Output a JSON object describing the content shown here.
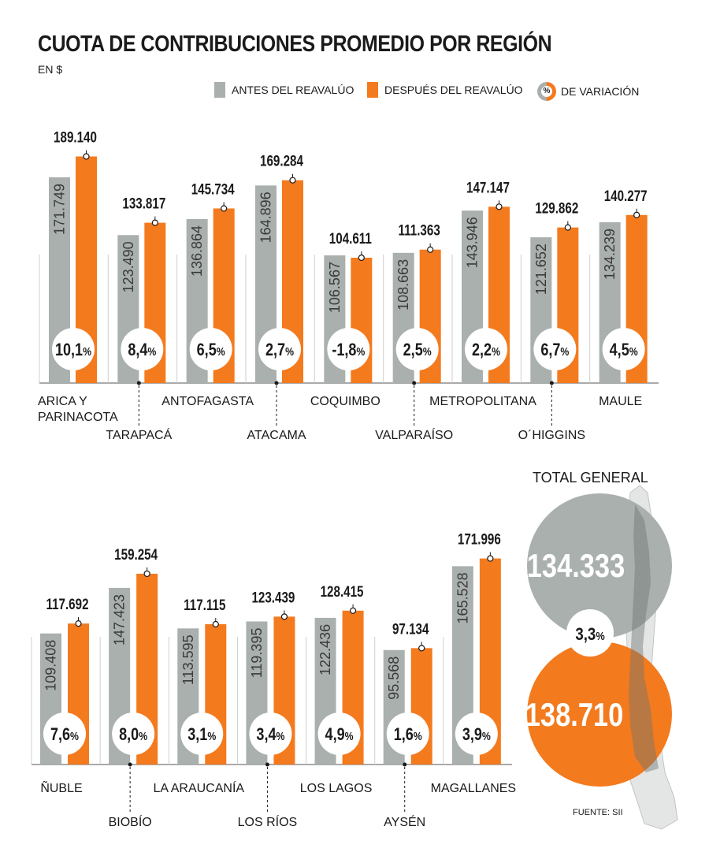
{
  "title": "CUOTA DE CONTRIBUCIONES PROMEDIO POR REGIÓN",
  "unit": "EN $",
  "legend": {
    "before": "ANTES DEL REAVALÚO",
    "after": "DESPUÉS DEL REAVALÚO",
    "pct_symbol": "%",
    "variation": "DE VARIACIÓN"
  },
  "colors": {
    "before": "#a9b0ad",
    "after": "#f47a1e",
    "text": "#1a1a1a"
  },
  "chart_data": [
    {
      "type": "bar",
      "categories": [
        "ARICA Y PARINACOTA",
        "TARAPACÁ",
        "ANTOFAGASTA",
        "ATACAMA",
        "COQUIMBO",
        "VALPARAÍSO",
        "METROPOLITANA",
        "O´HIGGINS",
        "MAULE"
      ],
      "series": [
        {
          "name": "ANTES DEL REAVALÚO",
          "values": [
            171749,
            123490,
            136864,
            164896,
            106567,
            108663,
            143946,
            121652,
            134239
          ],
          "labels": [
            "171.749",
            "123.490",
            "136.864",
            "164.896",
            "106.567",
            "108.663",
            "143.946",
            "121.652",
            "134.239"
          ]
        },
        {
          "name": "DESPUÉS DEL REAVALÚO",
          "values": [
            189140,
            133817,
            145734,
            169284,
            104611,
            111363,
            147147,
            129862,
            140277
          ],
          "labels": [
            "189.140",
            "133.817",
            "145.734",
            "169.284",
            "104.611",
            "111.363",
            "147.147",
            "129.862",
            "140.277"
          ]
        }
      ],
      "variation": [
        "10,1",
        "8,4",
        "6,5",
        "2,7",
        "-1,8",
        "2,5",
        "2,2",
        "6,7",
        "4,5"
      ]
    },
    {
      "type": "bar",
      "categories": [
        "ÑUBLE",
        "BIOBÍO",
        "LA ARAUCANÍA",
        "LOS RÍOS",
        "LOS LAGOS",
        "AYSÉN",
        "MAGALLANES"
      ],
      "series": [
        {
          "name": "ANTES DEL REAVALÚO",
          "values": [
            109408,
            147423,
            113595,
            119395,
            122436,
            95568,
            165528
          ],
          "labels": [
            "109.408",
            "147.423",
            "113.595",
            "119.395",
            "122.436",
            "95.568",
            "165.528"
          ]
        },
        {
          "name": "DESPUÉS DEL REAVALÚO",
          "values": [
            117692,
            159254,
            117115,
            123439,
            128415,
            97134,
            171996
          ],
          "labels": [
            "117.692",
            "159.254",
            "117.115",
            "123.439",
            "128.415",
            "97.134",
            "171.996"
          ]
        }
      ],
      "variation": [
        "7,6",
        "8,0",
        "3,1",
        "3,4",
        "4,9",
        "1,6",
        "3,9"
      ]
    }
  ],
  "total": {
    "title": "TOTAL GENERAL",
    "before": "134.333",
    "after": "138.710",
    "variation": "3,3",
    "pct_symbol": "%"
  },
  "source": "FUENTE: SII"
}
